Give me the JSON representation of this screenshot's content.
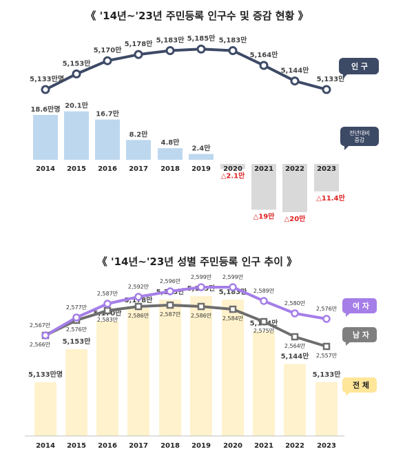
{
  "chart_data": [
    {
      "type": "line+bar",
      "title": "《 '14년~'23년 주민등록 인구수 및 증감 현황 》",
      "categories": [
        "2014",
        "2015",
        "2016",
        "2017",
        "2018",
        "2019",
        "2020",
        "2021",
        "2022",
        "2023"
      ],
      "series": [
        {
          "name": "인 구",
          "type": "line",
          "values": [
            5133,
            5153,
            5170,
            5178,
            5183,
            5185,
            5183,
            5164,
            5144,
            5133
          ],
          "labels": [
            "5,133만명",
            "5,153만",
            "5,170만",
            "5,178만",
            "5,183만",
            "5,185만",
            "5,183만",
            "5,164만",
            "5,144만",
            "5,133만"
          ],
          "color": "#3d4a66"
        },
        {
          "name": "전년대비 증감",
          "type": "bar",
          "values": [
            18.6,
            20.1,
            16.7,
            8.2,
            4.8,
            2.4,
            -2.1,
            -19,
            -20,
            -11.4
          ],
          "labels": [
            "18.6만명",
            "20.1만",
            "16.7만",
            "8.2만",
            "4.8만",
            "2.4만",
            "△2.1만",
            "△19만",
            "△20만",
            "△11.4만"
          ],
          "color_positive": "#bdd7ee",
          "color_negative": "#d9d9d9"
        }
      ],
      "legend": [
        "인 구",
        "전년대비 증감"
      ]
    },
    {
      "type": "line+bar",
      "title": "《 '14년~'23년 성별 주민등록 인구 추이 》",
      "categories": [
        "2014",
        "2015",
        "2016",
        "2017",
        "2018",
        "2019",
        "2020",
        "2021",
        "2022",
        "2023"
      ],
      "series": [
        {
          "name": "여 자",
          "type": "line",
          "values": [
            2567,
            2577,
            2587,
            2592,
            2596,
            2599,
            2599,
            2589,
            2580,
            2576
          ],
          "labels": [
            "2,567만",
            "2,577만",
            "2,587만",
            "2,592만",
            "2,596만",
            "2,599만",
            "2,599만",
            "2,589만",
            "2,580만",
            "2,576만"
          ],
          "color": "#a57ee8"
        },
        {
          "name": "남 자",
          "type": "line",
          "values": [
            2566,
            2576,
            2583,
            2586,
            2587,
            2586,
            2584,
            2575,
            2564,
            2557
          ],
          "labels": [
            "2,566만",
            "2,576만",
            "2,583만",
            "2,586만",
            "2,587만",
            "2,586만",
            "2,584만",
            "2,575만",
            "2,564만",
            "2,557만"
          ],
          "color": "#6d6d6d"
        },
        {
          "name": "전 체",
          "type": "bar",
          "values": [
            5133,
            5153,
            5170,
            5178,
            5183,
            5185,
            5183,
            5164,
            5144,
            5133
          ],
          "labels": [
            "5,133만명",
            "5,153만",
            "5,170만",
            "5,178만",
            "5,183만",
            "5,185만",
            "5,183만",
            "5,164만",
            "5,144만",
            "5,133만"
          ],
          "color": "#fff2cc"
        }
      ],
      "legend": [
        "여 자",
        "남 자",
        "전 체"
      ]
    }
  ]
}
